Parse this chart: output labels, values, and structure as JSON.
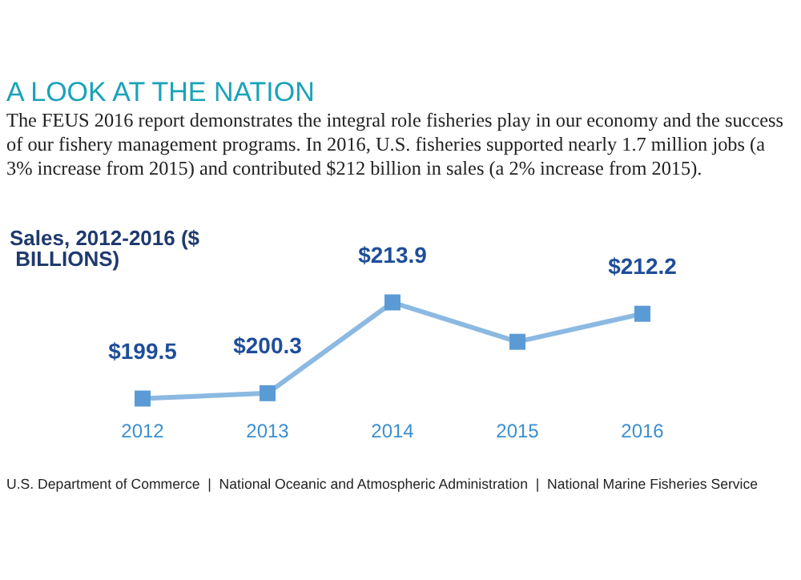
{
  "chart_data": {
    "type": "line",
    "title": "A LOOK AT THE NATION",
    "subtitle": "The FEUS 2016 report demonstrates the integral role fisheries play in our economy and the success of our fishery management programs. In 2016, U.S. fisheries supported nearly 1.7 million jobs (a 3% increase from 2015) and contributed $212 billion in sales (a 2% increase from 2015).",
    "ylabel": "Sales, 2012-2016 ($ BILLIONS)",
    "categories": [
      "2012",
      "2013",
      "2014",
      "2015",
      "2016"
    ],
    "series": [
      {
        "color": "#5b9bd5",
        "values": [
          199.5,
          200.3,
          213.9,
          208,
          212.2
        ],
        "value_labels": [
          "$199.5",
          "$200.3",
          "$213.9",
          null,
          "$212.2"
        ]
      }
    ],
    "marker": "square",
    "grid": false,
    "annotations": [
      "U.S. Department of Commerce  |  National Oceanic and Atmospheric Administration  |  National Marine Fisheries Service"
    ]
  }
}
